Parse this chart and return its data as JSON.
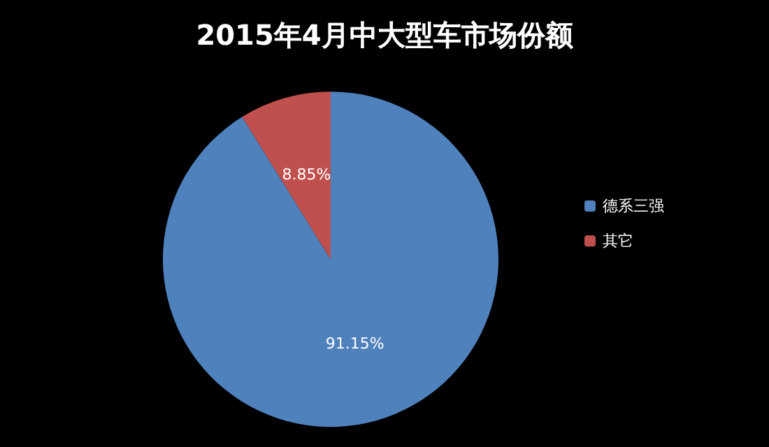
{
  "chart_data": {
    "type": "pie",
    "title": "2015年4月中大型车市场份额",
    "categories": [
      "德系三强",
      "其它"
    ],
    "values": [
      91.15,
      8.85
    ],
    "colors": [
      "#4f81bd",
      "#c0504d"
    ],
    "value_labels": [
      "91.15%",
      "8.85%"
    ],
    "legend": "right"
  }
}
